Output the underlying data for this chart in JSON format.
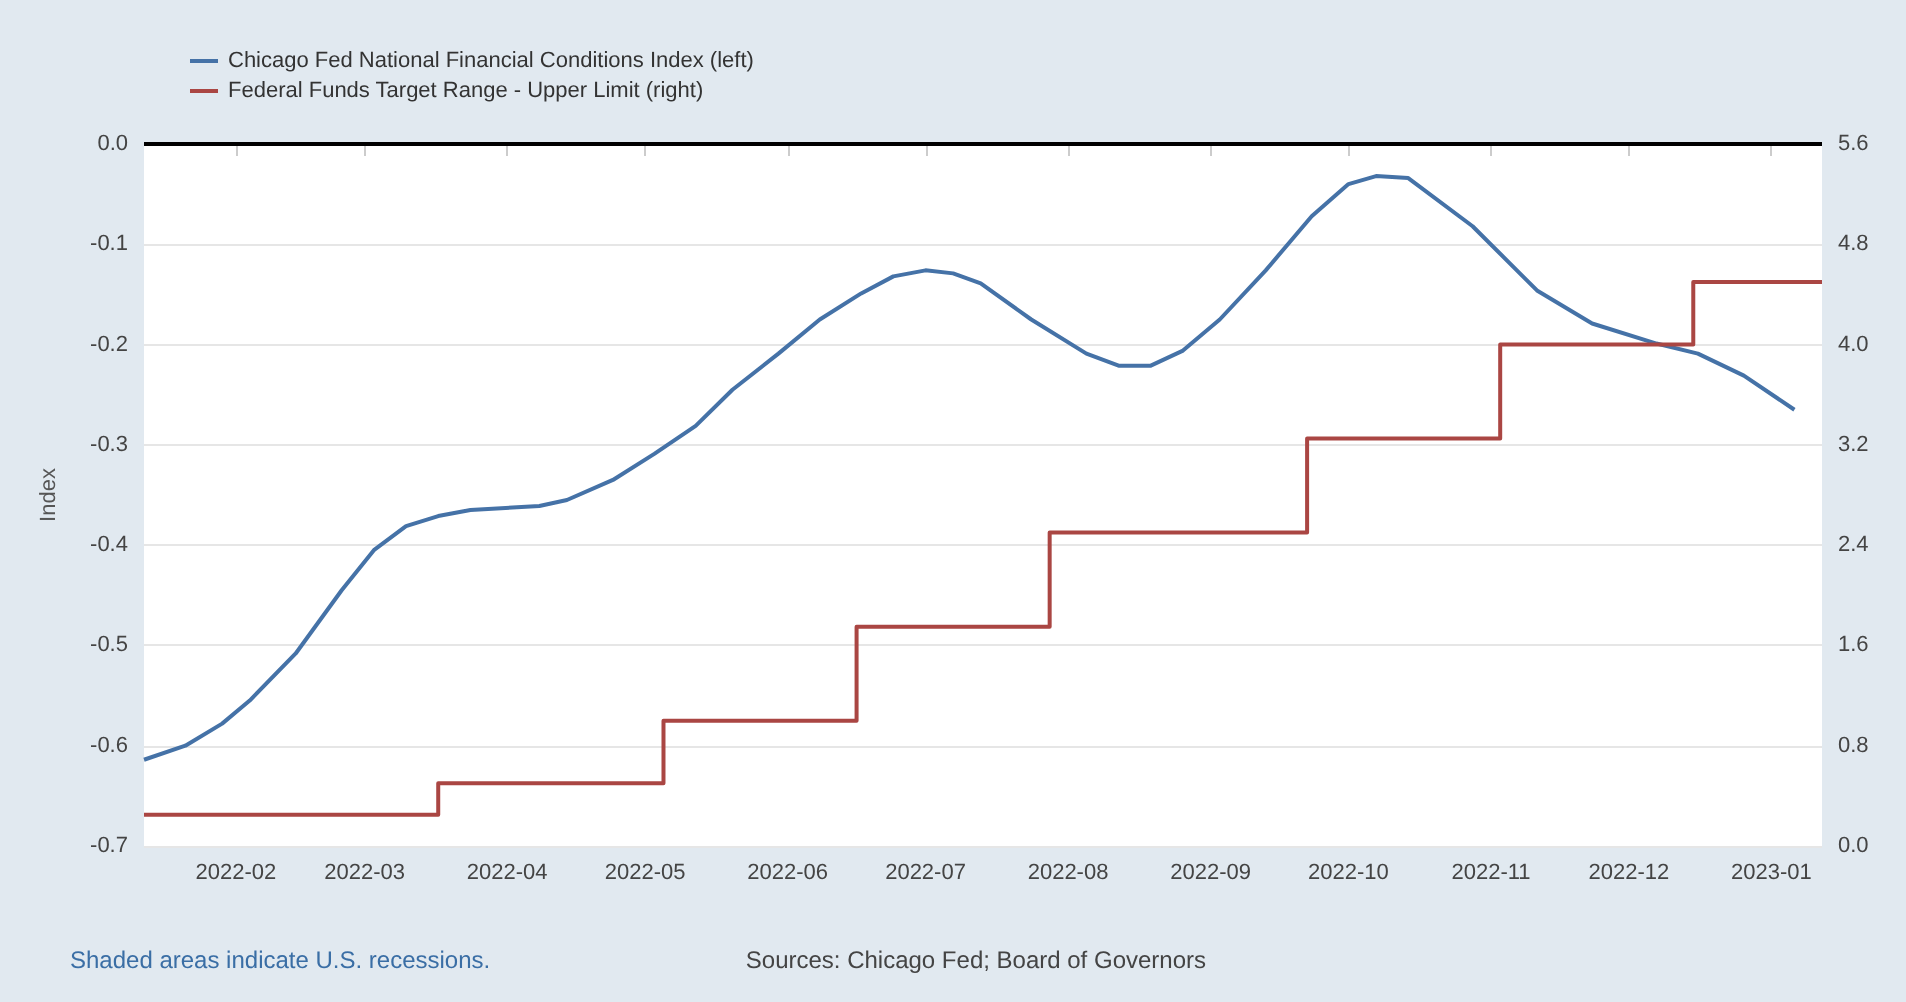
{
  "chart_data": {
    "type": "line",
    "series": [
      {
        "name": "Chicago Fed National Financial Conditions Index (left)",
        "color": "#4572a7",
        "x": [
          "2022-01-12",
          "2022-01-21",
          "2022-01-29",
          "2022-02-04",
          "2022-02-14",
          "2022-02-24",
          "2022-03-03",
          "2022-03-10",
          "2022-03-17",
          "2022-03-24",
          "2022-04-08",
          "2022-04-14",
          "2022-04-24",
          "2022-05-03",
          "2022-05-12",
          "2022-05-20",
          "2022-05-30",
          "2022-06-08",
          "2022-06-17",
          "2022-06-24",
          "2022-07-01",
          "2022-07-07",
          "2022-07-13",
          "2022-07-24",
          "2022-08-05",
          "2022-08-12",
          "2022-08-19",
          "2022-08-26",
          "2022-09-03",
          "2022-09-13",
          "2022-09-23",
          "2022-10-01",
          "2022-10-07",
          "2022-10-14",
          "2022-10-28",
          "2022-11-11",
          "2022-11-23",
          "2022-12-07",
          "2022-12-16",
          "2022-12-26",
          "2023-01-06"
        ],
        "values": [
          -0.614,
          -0.6,
          -0.578,
          -0.555,
          -0.508,
          -0.445,
          -0.405,
          -0.381,
          -0.371,
          -0.365,
          -0.361,
          -0.355,
          -0.335,
          -0.309,
          -0.281,
          -0.245,
          -0.209,
          -0.175,
          -0.149,
          -0.132,
          -0.126,
          -0.129,
          -0.139,
          -0.175,
          -0.209,
          -0.221,
          -0.221,
          -0.206,
          -0.175,
          -0.126,
          -0.072,
          -0.04,
          -0.032,
          -0.034,
          -0.082,
          -0.146,
          -0.179,
          -0.199,
          -0.209,
          -0.231,
          -0.265
        ]
      },
      {
        "name": "Federal Funds Target Range - Upper Limit (right)",
        "color": "#aa4643",
        "type": "step",
        "axis": "y2",
        "x": [
          "2022-01-12",
          "2022-03-17",
          "2022-05-05",
          "2022-06-16",
          "2022-07-28",
          "2022-09-22",
          "2022-11-03",
          "2022-12-15",
          "2023-01-12"
        ],
        "values": [
          0.25,
          0.5,
          1.0,
          1.75,
          2.5,
          3.25,
          4.0,
          4.5,
          4.5
        ]
      }
    ],
    "xlim": [
      "2022-01-12",
      "2023-01-12"
    ],
    "xticks": [
      "2022-02",
      "2022-03",
      "2022-04",
      "2022-05",
      "2022-06",
      "2022-07",
      "2022-08",
      "2022-09",
      "2022-10",
      "2022-11",
      "2022-12",
      "2023-01"
    ],
    "ylabel": "Index",
    "ylim": [
      -0.7,
      0
    ],
    "yticks": [
      -0.7,
      -0.6,
      -0.5,
      -0.4,
      -0.3,
      -0.2,
      -0.1,
      {
        "value": 0,
        "label": "0.0"
      }
    ],
    "y2lim": [
      0,
      5.6
    ],
    "y2ticks": [
      {
        "value": 0,
        "label": "0.0"
      },
      0.8,
      1.6,
      2.4,
      3.2,
      {
        "value": 4,
        "label": "4.0"
      },
      4.8,
      5.6
    ],
    "ref_lines": [
      {
        "axis": "y",
        "value": 0,
        "color": "#000000"
      }
    ],
    "grid": "y",
    "legend": "top left",
    "marker": "none",
    "line_style": "solid",
    "annotations": [
      "Shaded areas indicate U.S. recessions.",
      "Sources: Chicago Fed; Board of Governors"
    ]
  }
}
